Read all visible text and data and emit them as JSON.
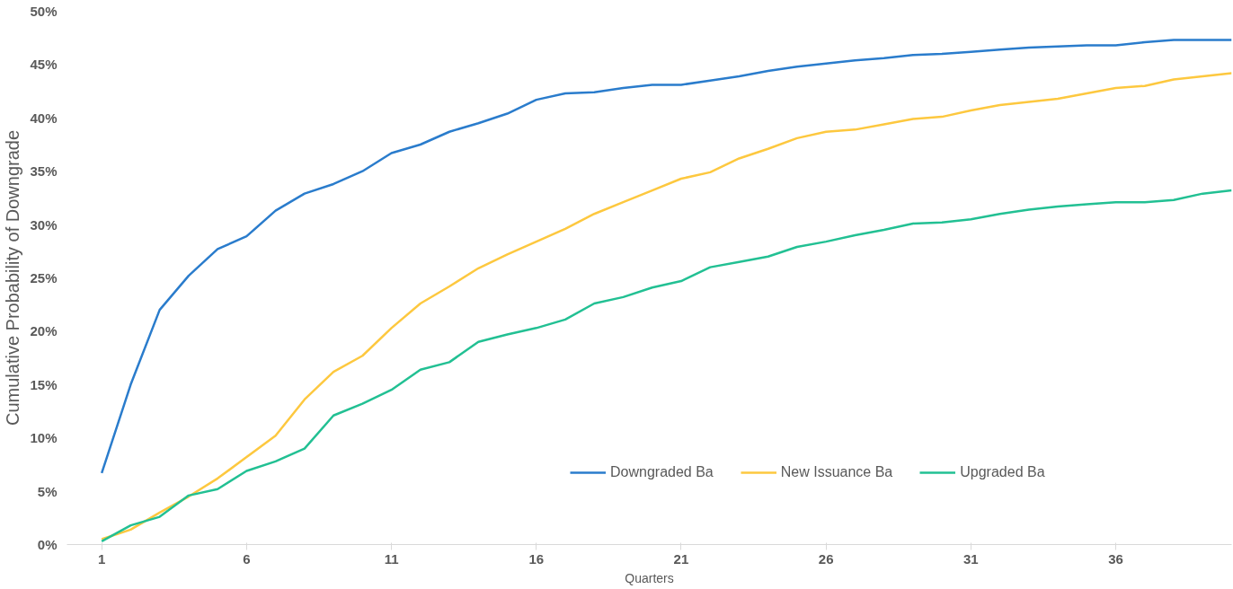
{
  "chart_data": {
    "type": "line",
    "xlabel": "Quarters",
    "ylabel": "Cumulative Probability of Downgrade",
    "x": [
      1,
      2,
      3,
      4,
      5,
      6,
      7,
      8,
      9,
      10,
      11,
      12,
      13,
      14,
      15,
      16,
      17,
      18,
      19,
      20,
      21,
      22,
      23,
      24,
      25,
      26,
      27,
      28,
      29,
      30,
      31,
      32,
      33,
      34,
      35,
      36,
      37,
      38,
      39,
      40
    ],
    "series": [
      {
        "name": "Downgraded Ba",
        "color": "#2a7ccc",
        "values": [
          6.7,
          15.0,
          22.0,
          25.2,
          27.7,
          28.9,
          31.3,
          32.9,
          33.8,
          35.0,
          36.7,
          37.5,
          38.7,
          39.5,
          40.4,
          41.7,
          42.3,
          42.4,
          42.8,
          43.1,
          43.1,
          43.5,
          43.9,
          44.4,
          44.8,
          45.1,
          45.4,
          45.6,
          45.9,
          46.0,
          46.2,
          46.4,
          46.6,
          46.7,
          46.8,
          46.8,
          47.1,
          47.3,
          47.3,
          47.3
        ]
      },
      {
        "name": "New Issuance Ba",
        "color": "#fdc83f",
        "values": [
          0.5,
          1.4,
          3.0,
          4.5,
          6.2,
          8.2,
          10.2,
          13.6,
          16.2,
          17.7,
          20.3,
          22.6,
          24.2,
          25.9,
          27.2,
          28.4,
          29.6,
          31.0,
          32.1,
          33.2,
          34.3,
          34.9,
          36.2,
          37.1,
          38.1,
          38.7,
          38.9,
          39.4,
          39.9,
          40.1,
          40.7,
          41.2,
          41.5,
          41.8,
          42.3,
          42.8,
          43.0,
          43.6,
          43.9,
          44.2
        ]
      },
      {
        "name": "Upgraded Ba",
        "color": "#22c093",
        "values": [
          0.3,
          1.8,
          2.6,
          4.6,
          5.2,
          6.9,
          7.8,
          9.0,
          12.1,
          13.2,
          14.5,
          16.4,
          17.1,
          19.0,
          19.7,
          20.3,
          21.1,
          22.6,
          23.2,
          24.1,
          24.7,
          26.0,
          26.5,
          27.0,
          27.9,
          28.4,
          29.0,
          29.5,
          30.1,
          30.2,
          30.5,
          31.0,
          31.4,
          31.7,
          31.9,
          32.1,
          32.1,
          32.3,
          32.9,
          33.2
        ]
      }
    ],
    "xlim": [
      -0.2,
      40
    ],
    "xticks": [
      1,
      6,
      11,
      16,
      21,
      26,
      31,
      36
    ],
    "ylim": [
      0,
      50
    ],
    "yticks": [
      {
        "value": 0,
        "label": "0%"
      },
      {
        "value": 5,
        "label": "5%"
      },
      {
        "value": 10,
        "label": "10%"
      },
      {
        "value": 15,
        "label": "15%"
      },
      {
        "value": 20,
        "label": "20%"
      },
      {
        "value": 25,
        "label": "25%"
      },
      {
        "value": 30,
        "label": "30%"
      },
      {
        "value": 35,
        "label": "35%"
      },
      {
        "value": 40,
        "label": "40%"
      },
      {
        "value": 45,
        "label": "45%"
      },
      {
        "value": 50,
        "label": "50%"
      }
    ],
    "grid": false,
    "legend": "bottom",
    "line_style": "solid",
    "marker": "none"
  }
}
